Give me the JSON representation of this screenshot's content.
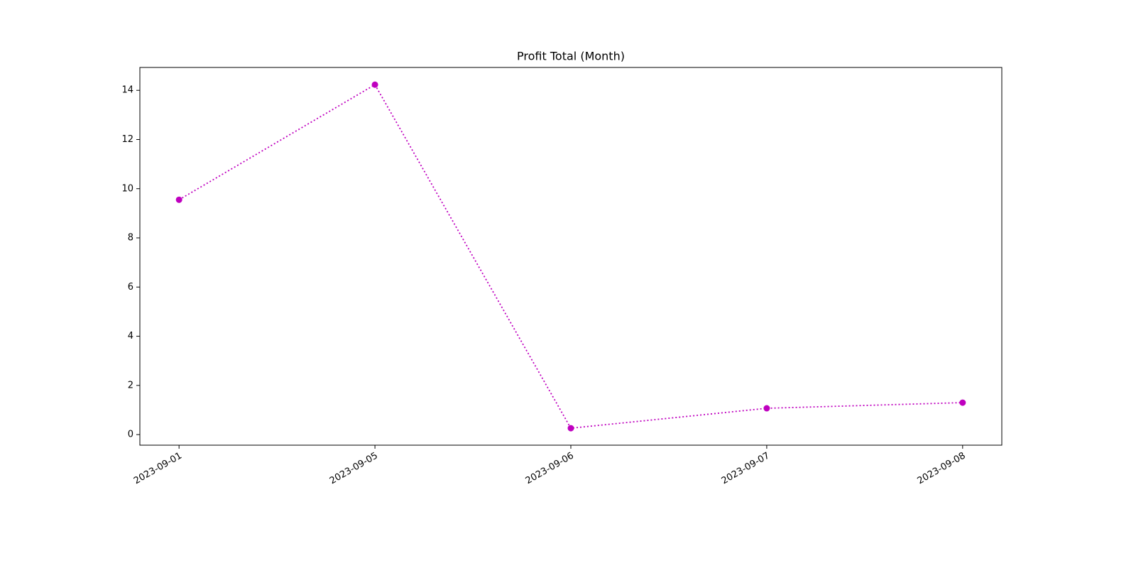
{
  "chart_data": {
    "type": "line",
    "title": "Profit Total (Month)",
    "categories": [
      "2023-09-01",
      "2023-09-05",
      "2023-09-06",
      "2023-09-07",
      "2023-09-08"
    ],
    "values": [
      9.55,
      14.23,
      0.26,
      1.07,
      1.3
    ],
    "color": "#bf00bf",
    "line_style": "dotted",
    "marker": "circle",
    "ylim": [
      -0.43,
      14.93
    ],
    "yticks": [
      0,
      2,
      4,
      6,
      8,
      10,
      12,
      14
    ],
    "grid": false
  }
}
